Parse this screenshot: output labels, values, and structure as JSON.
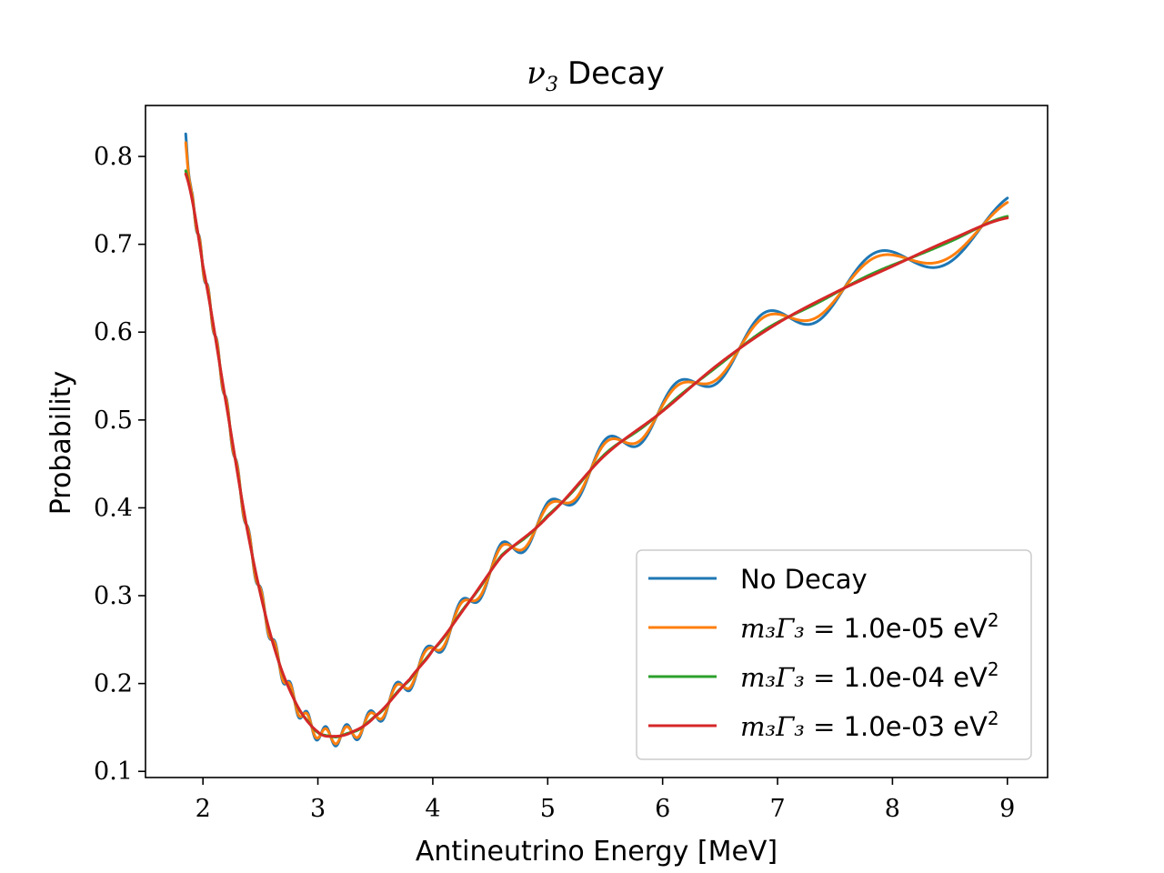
{
  "chart_data": {
    "type": "line",
    "title": "ν3 Decay",
    "title_symbol": "ν",
    "title_sub": "3",
    "title_rest": "Decay",
    "xlabel": "Antineutrino Energy [MeV]",
    "ylabel": "Probability",
    "xlim": [
      1.5,
      9.35
    ],
    "ylim": [
      0.093,
      0.858
    ],
    "xticks": [
      2,
      3,
      4,
      5,
      6,
      7,
      8,
      9
    ],
    "yticks": [
      0.1,
      0.2,
      0.3,
      0.4,
      0.5,
      0.6,
      0.7,
      0.8
    ],
    "x_range": [
      1.85,
      9.0
    ],
    "grid": false,
    "legend_position": "lower-right",
    "series": [
      {
        "name": "No Decay",
        "color": "#1f77b4",
        "damping": 1.0,
        "legend_html": "No Decay"
      },
      {
        "name": "m3Γ3 = 1.0e-05 eV2",
        "color": "#ff7f0e",
        "damping": 0.78,
        "legend_math": "m₃Γ₃ =",
        "legend_value": "1.0e-05 eV",
        "legend_sup": "2"
      },
      {
        "name": "m3Γ3 = 1.0e-04 eV2",
        "color": "#2ca02c",
        "damping": 0.08,
        "legend_math": "m₃Γ₃ =",
        "legend_value": "1.0e-04 eV",
        "legend_sup": "2"
      },
      {
        "name": "m3Γ3 = 1.0e-03 eV2",
        "color": "#d62728",
        "damping": 0.0,
        "legend_math": "m₃Γ₃ =",
        "legend_value": "1.0e-03 eV",
        "legend_sup": "2"
      }
    ],
    "smooth_curve_samples": [
      [
        1.85,
        0.78
      ],
      [
        2.0,
        0.675
      ],
      [
        2.2,
        0.52
      ],
      [
        2.4,
        0.365
      ],
      [
        2.6,
        0.25
      ],
      [
        2.8,
        0.18
      ],
      [
        3.0,
        0.145
      ],
      [
        3.15,
        0.14
      ],
      [
        3.3,
        0.145
      ],
      [
        3.5,
        0.163
      ],
      [
        3.8,
        0.205
      ],
      [
        4.0,
        0.238
      ],
      [
        4.3,
        0.29
      ],
      [
        4.6,
        0.345
      ],
      [
        5.0,
        0.39
      ],
      [
        5.5,
        0.46
      ],
      [
        6.0,
        0.51
      ],
      [
        6.5,
        0.565
      ],
      [
        7.0,
        0.61
      ],
      [
        7.5,
        0.645
      ],
      [
        8.0,
        0.675
      ],
      [
        8.5,
        0.705
      ],
      [
        9.0,
        0.73
      ]
    ]
  }
}
